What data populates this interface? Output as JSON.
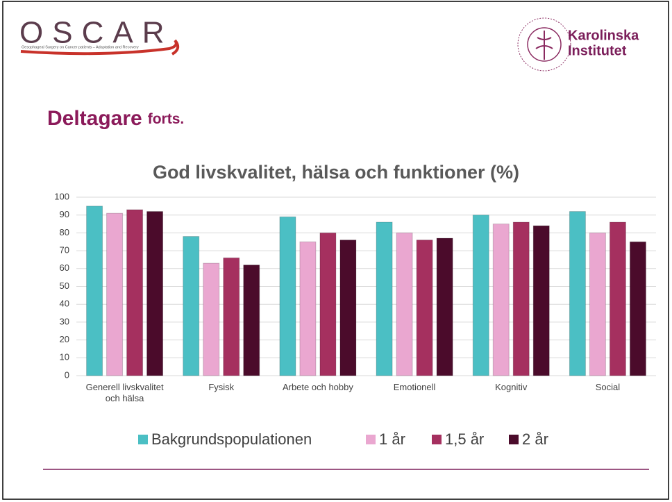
{
  "slide": {
    "logo": "OSCAR",
    "logo_subtitle": "Oesophageal Surgery on Cancer patients – Adaptation and Recovery",
    "institution": [
      "Karolinska",
      "Institutet"
    ],
    "heading": "Deltagare",
    "heading_suffix": "forts."
  },
  "chart_data": {
    "type": "bar",
    "title": "God livskvalitet, hälsa och funktioner (%)",
    "categories": [
      "Generell livskvalitet och hälsa",
      "Fysisk",
      "Arbete och hobby",
      "Emotionell",
      "Kognitiv",
      "Social"
    ],
    "series": [
      {
        "name": "Bakgrundspopulationen",
        "color": "#4bbfc4",
        "values": [
          95,
          78,
          89,
          86,
          90,
          92
        ]
      },
      {
        "name": "1 år",
        "color": "#eaa7d0",
        "values": [
          91,
          63,
          75,
          80,
          85,
          80
        ]
      },
      {
        "name": "1,5 år",
        "color": "#a5305f",
        "values": [
          93,
          66,
          80,
          76,
          86,
          86
        ]
      },
      {
        "name": "2 år",
        "color": "#4b0b2b",
        "values": [
          92,
          62,
          76,
          77,
          84,
          75
        ]
      }
    ],
    "ylim": [
      0,
      100
    ],
    "yticks": [
      0,
      10,
      20,
      30,
      40,
      50,
      60,
      70,
      80,
      90,
      100
    ],
    "grid": true,
    "legend": "bottom"
  }
}
